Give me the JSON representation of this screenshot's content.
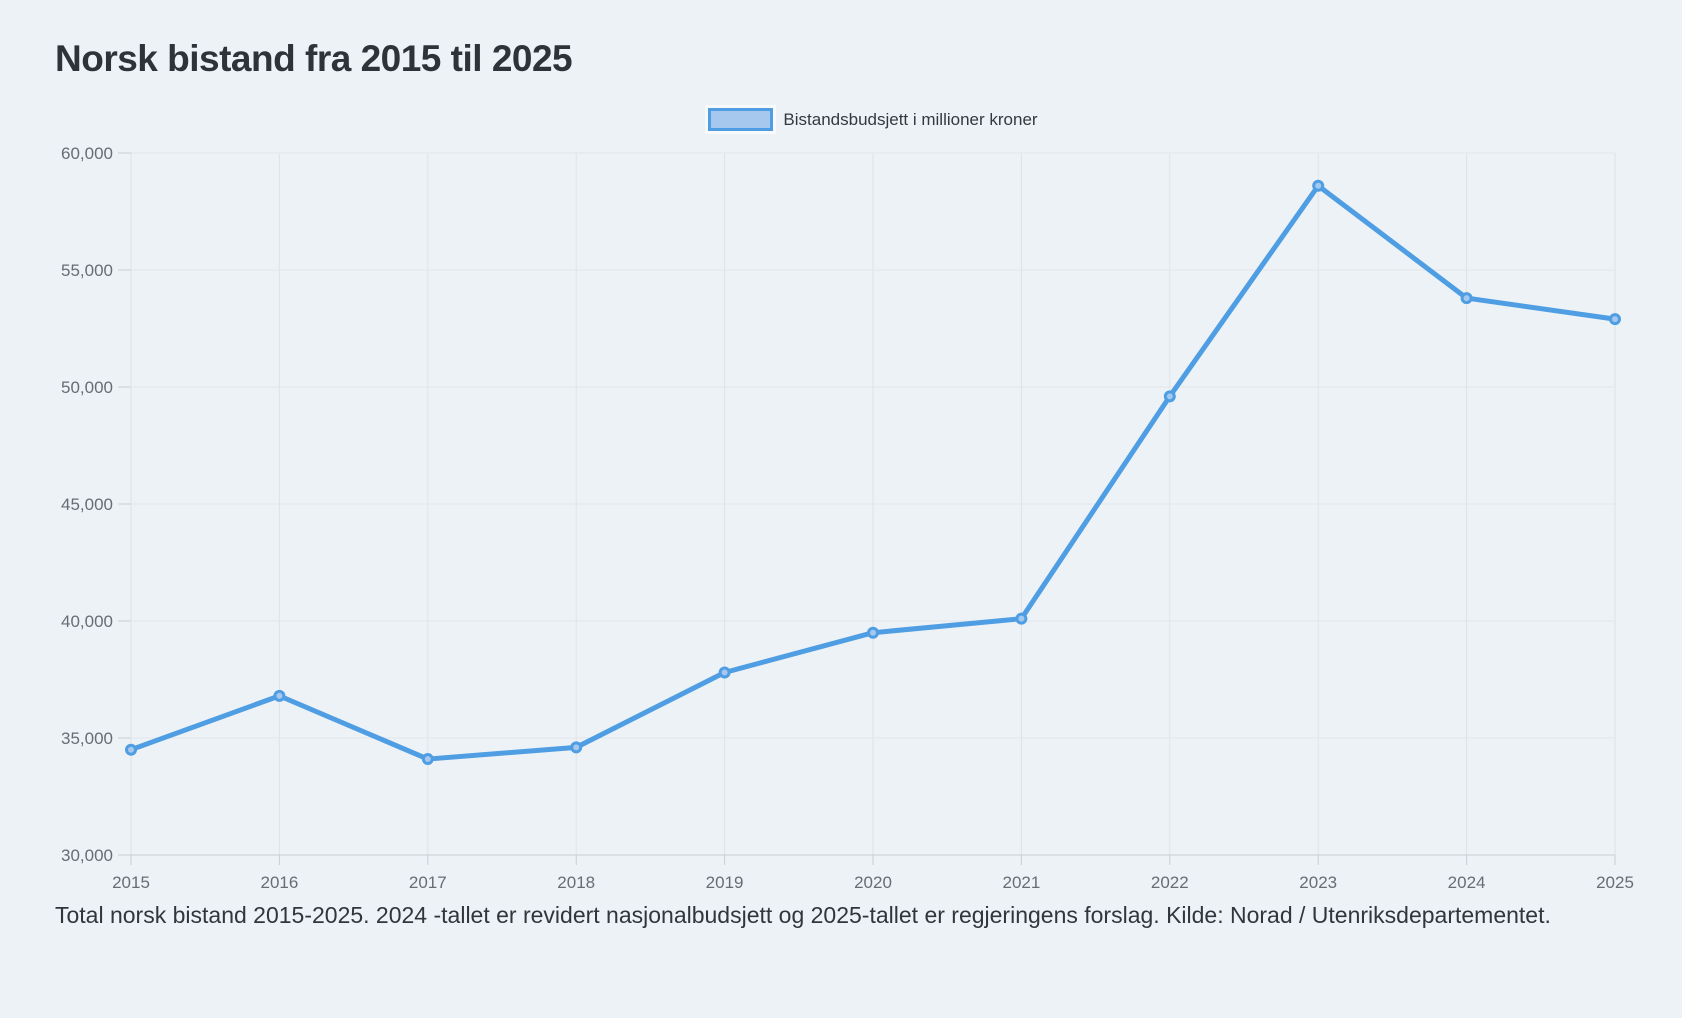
{
  "page": {
    "title": "Norsk bistand fra 2015 til 2025",
    "caption": "Total norsk bistand 2015-2025. 2024 -tallet er revidert nasjonalbudsjett og 2025-tallet er regjeringens forslag. Kilde: Norad / Utenriksdepartementet."
  },
  "legend": {
    "label": "Bistandsbudsjett i millioner kroner"
  },
  "chart_data": {
    "type": "line",
    "title": "Norsk bistand fra 2015 til 2025",
    "categories": [
      "2015",
      "2016",
      "2017",
      "2018",
      "2019",
      "2020",
      "2021",
      "2022",
      "2023",
      "2024",
      "2025"
    ],
    "series": [
      {
        "name": "Bistandsbudsjett i millioner kroner",
        "values": [
          34500,
          36800,
          34100,
          34600,
          37800,
          39500,
          40100,
          49600,
          58600,
          53800,
          52900
        ]
      }
    ],
    "xlabel": "",
    "ylabel": "",
    "ylim": [
      30000,
      60000
    ],
    "ytick_step": 5000,
    "ytick_format": "thousands-comma",
    "grid": true,
    "legend_position": "top-center",
    "line_color": "#4f9ee3",
    "marker_fill": "#a6c8ee",
    "colors": {
      "background": "#edf2f6",
      "grid_horizontal": "#e2e6e9",
      "grid_vertical": "#dfe3e7",
      "axis_line": "#c7cdd3",
      "tick": "#c9ced4",
      "axis_label": "#666d73",
      "title_text": "#2d3338",
      "caption_text": "#2f363c"
    }
  }
}
